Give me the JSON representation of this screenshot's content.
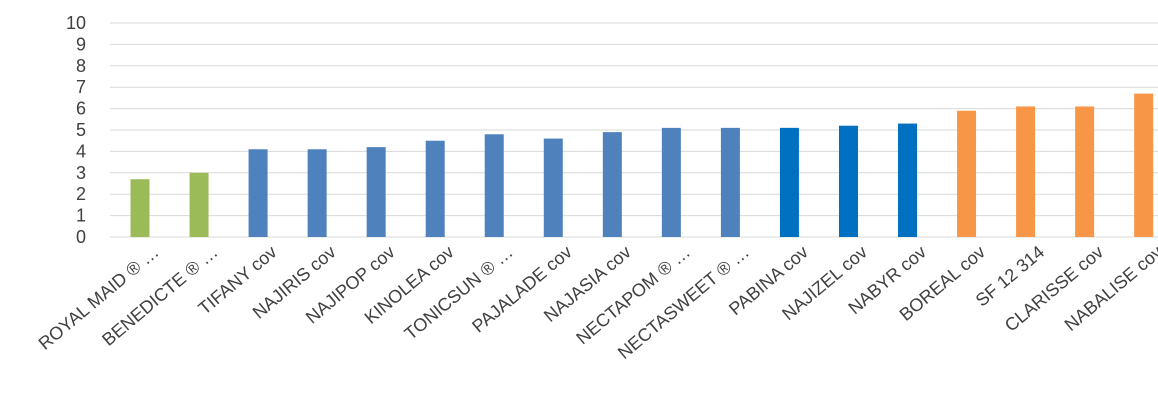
{
  "chart_data": {
    "type": "bar",
    "title": "",
    "xlabel": "",
    "ylabel": "",
    "ylim": [
      0,
      10
    ],
    "yticks": [
      0,
      1,
      2,
      3,
      4,
      5,
      6,
      7,
      8,
      9,
      10
    ],
    "grid": true,
    "legend": "none",
    "categories": [
      "ROYAL MAID ® …",
      "BENEDICTE ® …",
      "TIFANY cov",
      "NAJIRIS cov",
      "NAJIPOP cov",
      "KINOLEA cov",
      "TONICSUN ® …",
      "PAJALADE cov",
      "NAJASIA cov",
      "NECTAPOM ® …",
      "NECTASWEET ® …",
      "PABINA cov",
      "NAJIZEL cov",
      "NABYR cov",
      "BOREAL cov",
      "SF 12 314",
      "CLARISSE cov",
      "NABALISE cov"
    ],
    "values": [
      2.7,
      3.0,
      4.1,
      4.1,
      4.2,
      4.5,
      4.8,
      4.6,
      4.9,
      5.1,
      5.1,
      5.1,
      5.2,
      5.3,
      5.9,
      6.1,
      6.1,
      6.7
    ],
    "colors": [
      "#9bbb59",
      "#9bbb59",
      "#4f81bd",
      "#4f81bd",
      "#4f81bd",
      "#4f81bd",
      "#4f81bd",
      "#4f81bd",
      "#4f81bd",
      "#4f81bd",
      "#4f81bd",
      "#0070c0",
      "#0070c0",
      "#0070c0",
      "#f79646",
      "#f79646",
      "#f79646",
      "#f79646"
    ]
  }
}
